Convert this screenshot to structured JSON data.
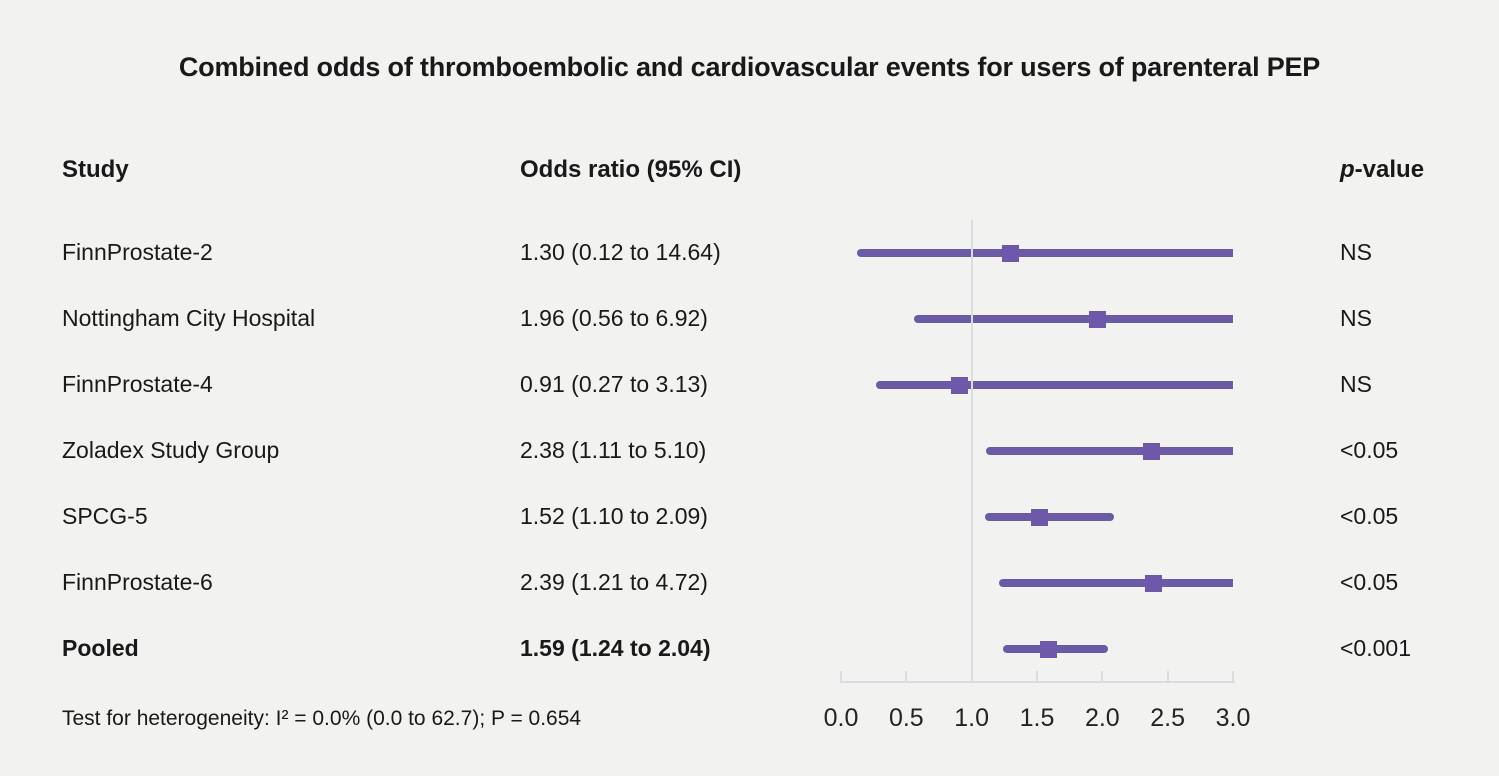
{
  "title": "Combined odds of thromboembolic and cardiovascular events for users of parenteral PEP",
  "columns": {
    "study": "Study",
    "odds_ratio": "Odds ratio (95% CI)",
    "p_italic": "p",
    "p_rest": "-value"
  },
  "footnote": "Test for heterogeneity: I² = 0.0% (0.0 to 62.7); P = 0.654",
  "colors": {
    "marker_purple": "#6e58a9",
    "line_purple": "#6b5aa6",
    "axis_gray": "#d9dde2",
    "background": "#f2f2f1",
    "text": "#191919"
  },
  "chart_data": {
    "type": "forest",
    "title": "Combined odds of thromboembolic and cardiovascular events for users of parenteral PEP",
    "xlabel": "",
    "xlim": [
      0.0,
      3.0
    ],
    "x_tick_labels": [
      "0.0",
      "0.5",
      "1.0",
      "1.5",
      "2.0",
      "2.5",
      "3.0"
    ],
    "reference_line": 1.0,
    "grid": false,
    "rows": [
      {
        "study": "FinnProstate-2",
        "or": 1.3,
        "ci_low": 0.12,
        "ci_high": 14.64,
        "or_label": "1.30 (0.12 to 14.64)",
        "p": "NS",
        "bold": false
      },
      {
        "study": "Nottingham City Hospital",
        "or": 1.96,
        "ci_low": 0.56,
        "ci_high": 6.92,
        "or_label": "1.96 (0.56 to 6.92)",
        "p": "NS",
        "bold": false
      },
      {
        "study": "FinnProstate-4",
        "or": 0.91,
        "ci_low": 0.27,
        "ci_high": 3.13,
        "or_label": "0.91 (0.27 to 3.13)",
        "p": "NS",
        "bold": false
      },
      {
        "study": "Zoladex Study Group",
        "or": 2.38,
        "ci_low": 1.11,
        "ci_high": 5.1,
        "or_label": "2.38 (1.11 to 5.10)",
        "p": "<0.05",
        "bold": false
      },
      {
        "study": "SPCG-5",
        "or": 1.52,
        "ci_low": 1.1,
        "ci_high": 2.09,
        "or_label": "1.52 (1.10 to 2.09)",
        "p": "<0.05",
        "bold": false
      },
      {
        "study": "FinnProstate-6",
        "or": 2.39,
        "ci_low": 1.21,
        "ci_high": 4.72,
        "or_label": "2.39 (1.21 to 4.72)",
        "p": "<0.05",
        "bold": false
      },
      {
        "study": "Pooled",
        "or": 1.59,
        "ci_low": 1.24,
        "ci_high": 2.04,
        "or_label": "1.59 (1.24 to 2.04)",
        "p": "<0.001",
        "bold": true
      }
    ]
  }
}
